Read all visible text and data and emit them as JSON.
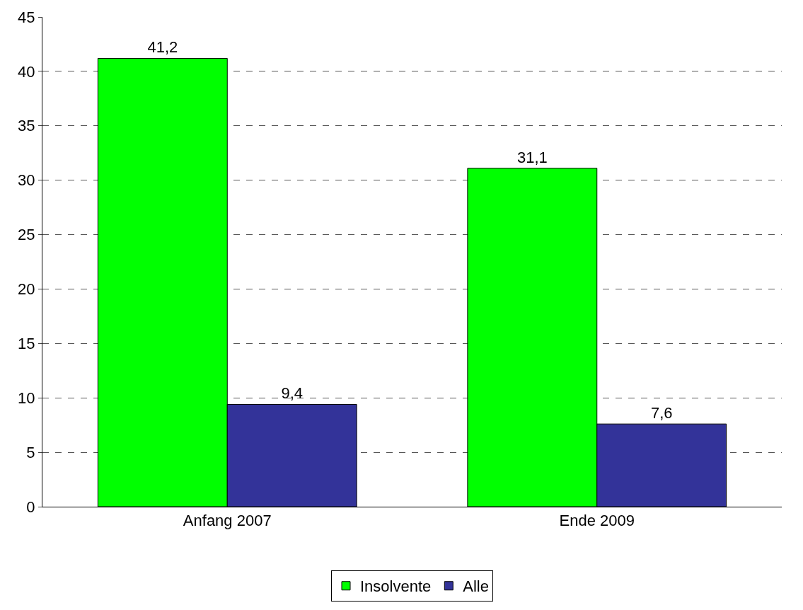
{
  "chart_data": {
    "type": "bar",
    "categories": [
      "Anfang 2007",
      "Ende 2009"
    ],
    "series": [
      {
        "name": "Insolvente",
        "color": "#00ff00",
        "values": [
          41.2,
          31.1
        ],
        "value_labels": [
          "41,2",
          "31,1"
        ]
      },
      {
        "name": "Alle",
        "color": "#333399",
        "values": [
          9.4,
          7.6
        ],
        "value_labels": [
          "9,4",
          "7,6"
        ]
      }
    ],
    "ylim": [
      0,
      45
    ],
    "yticks": [
      0,
      5,
      10,
      15,
      20,
      25,
      30,
      35,
      40,
      45
    ],
    "grid": "y",
    "legend": "bottom"
  }
}
